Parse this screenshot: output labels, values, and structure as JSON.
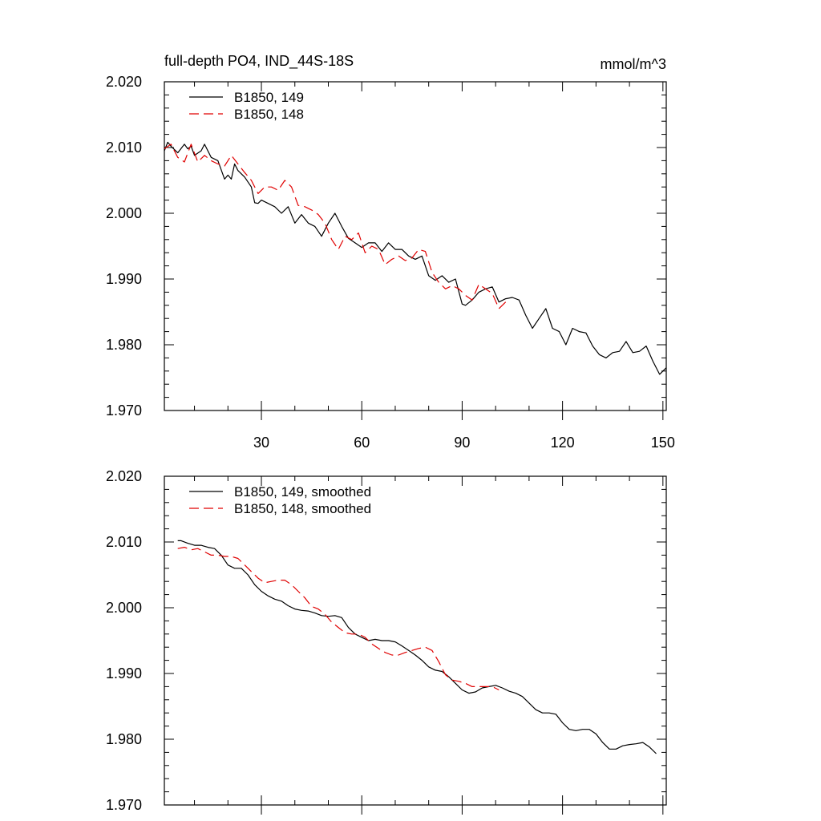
{
  "chart_data": [
    {
      "type": "line",
      "title": "full-depth PO4, IND_44S-18S",
      "units": "mmol/m^3",
      "xlim": [
        1,
        151
      ],
      "ylim": [
        1.97,
        2.02
      ],
      "xticks": [
        30,
        60,
        90,
        120,
        150
      ],
      "xtick_labels": [
        "30",
        "60",
        "90",
        "120",
        "150"
      ],
      "yticks": [
        1.97,
        1.98,
        1.99,
        2.0,
        2.01,
        2.02
      ],
      "ytick_labels": [
        "1.970",
        "1.980",
        "1.990",
        "2.000",
        "2.010",
        "2.020"
      ],
      "legend_position": "top-left",
      "series": [
        {
          "name": "B1850, 149",
          "color": "#000000",
          "dash": "solid",
          "x": [
            1,
            2,
            3,
            5,
            7,
            8,
            9,
            10,
            12,
            13,
            15,
            17,
            19,
            20,
            21,
            22,
            23,
            25,
            27,
            28,
            29,
            30,
            32,
            34,
            36,
            38,
            40,
            42,
            44,
            46,
            48,
            50,
            52,
            54,
            56,
            58,
            60,
            62,
            64,
            66,
            68,
            70,
            72,
            74,
            76,
            78,
            80,
            82,
            84,
            86,
            88,
            90,
            91,
            93,
            95,
            97,
            99,
            101,
            103,
            105,
            107,
            109,
            111,
            113,
            115,
            117,
            119,
            121,
            123,
            125,
            127,
            129,
            131,
            133,
            135,
            137,
            139,
            141,
            143,
            145,
            147,
            149,
            151
          ],
          "values": [
            2.0095,
            2.0108,
            2.0102,
            2.0092,
            2.0105,
            2.0098,
            2.0102,
            2.0088,
            2.0095,
            2.0105,
            2.0085,
            2.008,
            2.0052,
            2.0058,
            2.0052,
            2.0075,
            2.0065,
            2.0055,
            2.004,
            2.0016,
            2.0015,
            2.002,
            2.0015,
            2.001,
            2.0,
            2.001,
            1.9985,
            1.9998,
            1.9985,
            1.998,
            1.9965,
            1.9985,
            2.0,
            1.998,
            1.9962,
            1.9955,
            1.9948,
            1.9955,
            1.9955,
            1.9942,
            1.9955,
            1.9945,
            1.9945,
            1.9935,
            1.993,
            1.9935,
            1.9905,
            1.9898,
            1.9905,
            1.9895,
            1.99,
            1.9862,
            1.986,
            1.9868,
            1.988,
            1.9885,
            1.9888,
            1.9865,
            1.987,
            1.9872,
            1.9868,
            1.9845,
            1.9825,
            1.984,
            1.9855,
            1.9825,
            1.982,
            1.98,
            1.9825,
            1.982,
            1.9818,
            1.9798,
            1.9785,
            1.978,
            1.9788,
            1.979,
            1.9805,
            1.9788,
            1.979,
            1.9798,
            1.9775,
            1.9755,
            1.9765
          ]
        },
        {
          "name": "B1850, 148",
          "color": "#e00000",
          "dash": "dashed",
          "x": [
            1,
            3,
            5,
            7,
            9,
            11,
            13,
            15,
            17,
            19,
            21,
            23,
            25,
            27,
            29,
            31,
            33,
            35,
            37,
            39,
            41,
            43,
            45,
            47,
            49,
            51,
            53,
            55,
            57,
            59,
            61,
            63,
            65,
            67,
            69,
            71,
            73,
            75,
            77,
            79,
            81,
            83,
            85,
            87,
            89,
            91,
            93,
            95,
            97,
            99,
            101,
            103
          ],
          "values": [
            2.0098,
            2.0105,
            2.0085,
            2.0078,
            2.0105,
            2.0078,
            2.0088,
            2.008,
            2.0075,
            2.0072,
            2.0088,
            2.0075,
            2.0062,
            2.005,
            2.003,
            2.004,
            2.004,
            2.0035,
            2.005,
            2.004,
            2.0012,
            2.001,
            2.0005,
            1.9998,
            1.9985,
            1.996,
            1.9945,
            1.9965,
            1.996,
            1.997,
            1.994,
            1.995,
            1.9945,
            1.9922,
            1.993,
            1.9935,
            1.9928,
            1.9932,
            1.9945,
            1.9942,
            1.991,
            1.9895,
            1.9885,
            1.989,
            1.9885,
            1.9875,
            1.9868,
            1.9892,
            1.9885,
            1.9878,
            1.9855,
            1.9865
          ]
        }
      ]
    },
    {
      "type": "line",
      "xlim": [
        1,
        151
      ],
      "ylim": [
        1.97,
        2.02
      ],
      "xticks": [
        30,
        60,
        90,
        120,
        150
      ],
      "yticks": [
        1.97,
        1.98,
        1.99,
        2.0,
        2.01,
        2.02
      ],
      "ytick_labels": [
        "1.970",
        "1.980",
        "1.990",
        "2.000",
        "2.010",
        "2.020"
      ],
      "legend_position": "top-left",
      "series": [
        {
          "name": "B1850, 149, smoothed",
          "color": "#000000",
          "dash": "solid",
          "x": [
            5,
            6,
            8,
            10,
            12,
            14,
            16,
            18,
            20,
            22,
            24,
            26,
            28,
            30,
            32,
            34,
            36,
            38,
            40,
            42,
            44,
            46,
            48,
            50,
            52,
            54,
            56,
            58,
            60,
            62,
            64,
            66,
            68,
            70,
            72,
            74,
            76,
            78,
            80,
            82,
            84,
            86,
            88,
            90,
            92,
            94,
            96,
            98,
            100,
            102,
            104,
            106,
            108,
            110,
            112,
            114,
            116,
            118,
            120,
            122,
            124,
            126,
            128,
            130,
            132,
            134,
            136,
            138,
            140,
            142,
            144,
            146,
            148
          ],
          "values": [
            2.0102,
            2.0102,
            2.0098,
            2.0095,
            2.0095,
            2.0092,
            2.009,
            2.008,
            2.0065,
            2.006,
            2.006,
            2.005,
            2.0035,
            2.0025,
            2.0018,
            2.0013,
            2.001,
            2.0003,
            1.9998,
            1.9996,
            1.9995,
            1.9992,
            1.9988,
            1.9987,
            1.9988,
            1.9985,
            1.997,
            1.996,
            1.9955,
            1.995,
            1.9952,
            1.995,
            1.995,
            1.9948,
            1.9942,
            1.9935,
            1.9928,
            1.992,
            1.991,
            1.9905,
            1.9903,
            1.9895,
            1.9885,
            1.9875,
            1.987,
            1.9872,
            1.9878,
            1.988,
            1.9882,
            1.9878,
            1.9873,
            1.987,
            1.9865,
            1.9855,
            1.9845,
            1.984,
            1.984,
            1.9838,
            1.9825,
            1.9815,
            1.9813,
            1.9815,
            1.9815,
            1.9808,
            1.9795,
            1.9785,
            1.9785,
            1.979,
            1.9792,
            1.9793,
            1.9795,
            1.9788,
            1.9778
          ]
        },
        {
          "name": "B1850, 148, smoothed",
          "color": "#e00000",
          "dash": "dashed",
          "x": [
            5,
            7,
            9,
            11,
            13,
            15,
            17,
            19,
            21,
            23,
            25,
            27,
            29,
            31,
            33,
            35,
            37,
            39,
            41,
            43,
            45,
            47,
            49,
            51,
            53,
            55,
            57,
            59,
            61,
            63,
            65,
            67,
            69,
            71,
            73,
            75,
            77,
            79,
            81,
            83,
            85,
            87,
            89,
            91,
            93,
            95,
            97,
            99,
            101
          ],
          "values": [
            2.009,
            2.0092,
            2.0088,
            2.009,
            2.0085,
            2.008,
            2.008,
            2.0078,
            2.0078,
            2.0075,
            2.0065,
            2.0055,
            2.0045,
            2.0038,
            2.004,
            2.0042,
            2.0042,
            2.0035,
            2.0025,
            2.0015,
            2.0002,
            1.9998,
            1.999,
            1.9978,
            1.997,
            1.9962,
            1.996,
            1.996,
            1.9955,
            1.9945,
            1.9938,
            1.9932,
            1.9928,
            1.9928,
            1.9932,
            1.9935,
            1.9938,
            1.994,
            1.9935,
            1.9918,
            1.9898,
            1.989,
            1.9888,
            1.9885,
            1.988,
            1.988,
            1.988,
            1.988,
            1.9875
          ]
        }
      ]
    }
  ]
}
